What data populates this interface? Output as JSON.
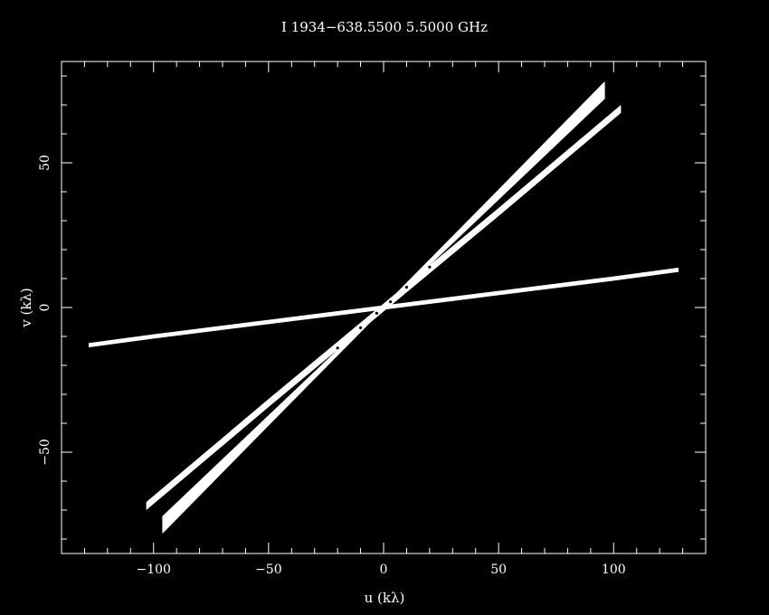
{
  "chart_data": {
    "type": "scatter",
    "title": "I 1934−638.5500  5.5000 GHz",
    "xlabel": "u (kλ)",
    "ylabel": "v (kλ)",
    "xlim": [
      -140,
      140
    ],
    "ylim": [
      -85,
      85
    ],
    "x_ticks": {
      "major": [
        -100,
        -50,
        0,
        50,
        100
      ],
      "labels": [
        "−100",
        "−50",
        "0",
        "50",
        "100"
      ],
      "minor_step": 10
    },
    "y_ticks": {
      "major": [
        -50,
        0,
        50
      ],
      "labels": [
        "−50",
        "0",
        "50"
      ],
      "minor_step": 10
    },
    "grid": false,
    "background": "#000000",
    "foreground": "#ffffff",
    "series": [
      {
        "points": [
          [
            -128,
            -13
          ],
          [
            -100,
            -10
          ],
          [
            -50,
            -5
          ],
          [
            0,
            0
          ],
          [
            50,
            5
          ],
          [
            100,
            10
          ],
          [
            128,
            13
          ]
        ],
        "half_width_v": 0.6
      },
      {
        "points": [
          [
            -103,
            -68.5
          ],
          [
            -50,
            -33
          ],
          [
            0,
            0
          ],
          [
            50,
            33
          ],
          [
            103,
            68.5
          ]
        ],
        "half_width_v": 1.2
      },
      {
        "points": [
          [
            -96,
            -75
          ],
          [
            -50,
            -39
          ],
          [
            0,
            0
          ],
          [
            50,
            39
          ],
          [
            96,
            75
          ]
        ],
        "half_width_v_start": 2.8,
        "half_width_v_end": 2.8,
        "half_width_v_center": 0.3
      }
    ]
  }
}
